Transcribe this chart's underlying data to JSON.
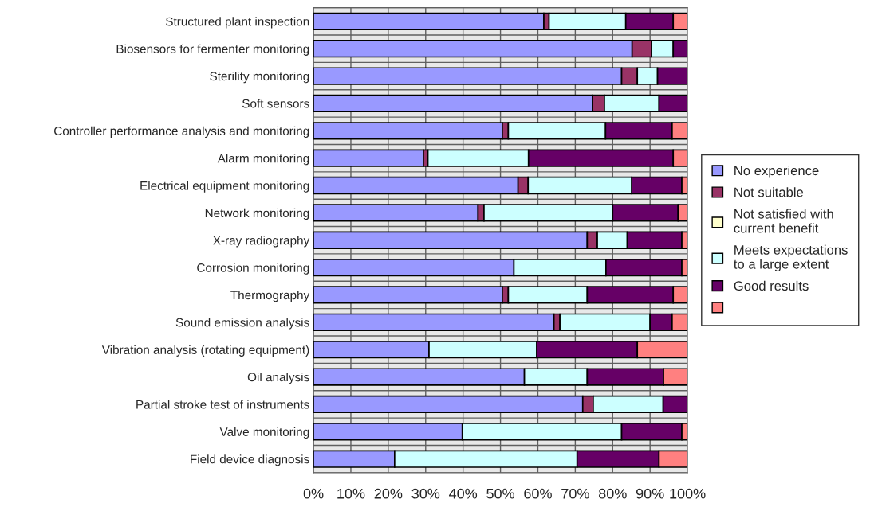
{
  "chart_data": {
    "type": "bar",
    "orientation": "horizontal",
    "stacked": true,
    "categories": [
      "Structured plant inspection",
      "Biosensors for fermenter monitoring",
      "Sterility monitoring",
      "Soft sensors",
      "Controller performance analysis and monitoring",
      "Alarm monitoring",
      "Electrical equipment monitoring",
      "Network monitoring",
      "X-ray radiography",
      "Corrosion monitoring",
      "Thermography",
      "Sound emission analysis",
      "Vibration analysis (rotating equipment)",
      "Oil analysis",
      "Partial stroke test of instruments",
      "Valve monitoring",
      "Field device diagnosis"
    ],
    "series": [
      {
        "name": "No experience",
        "color": "#9999ff",
        "values": [
          61.6,
          85.2,
          82.4,
          74.6,
          50.5,
          29.4,
          54.7,
          44.0,
          73.2,
          53.6,
          50.5,
          64.3,
          30.9,
          56.4,
          72.0,
          39.8,
          21.7
        ]
      },
      {
        "name": "Not suitable",
        "color": "#993366",
        "values": [
          1.4,
          5.2,
          4.2,
          3.2,
          1.6,
          1.2,
          2.7,
          1.6,
          2.7,
          0,
          1.6,
          1.6,
          0,
          0,
          2.8,
          0,
          0
        ]
      },
      {
        "name": "Not satisfied with\ncurrent benefit",
        "color": "#ffffcc",
        "values": [
          0,
          0,
          0,
          0,
          0,
          0,
          0,
          0,
          0,
          0,
          0,
          0,
          0,
          0,
          0,
          0,
          0
        ]
      },
      {
        "name": "Meets expectations\nto a large extent",
        "color": "#ccffff",
        "values": [
          20.5,
          5.8,
          5.4,
          14.6,
          26.0,
          26.9,
          27.7,
          34.4,
          8.0,
          24.6,
          21.1,
          24.1,
          28.8,
          16.8,
          18.7,
          42.6,
          48.8
        ]
      },
      {
        "name": "Good results",
        "color": "#660066",
        "values": [
          12.7,
          3.8,
          8.0,
          7.6,
          17.8,
          38.7,
          13.4,
          17.5,
          14.6,
          20.3,
          23.0,
          5.9,
          26.9,
          20.4,
          6.5,
          16.1,
          21.9
        ]
      },
      {
        "color": "#ff8080",
        "values": [
          3.8,
          0,
          0,
          0,
          4.1,
          3.8,
          1.5,
          2.5,
          1.5,
          1.5,
          3.8,
          4.1,
          13.4,
          6.4,
          0,
          1.5,
          7.6
        ]
      }
    ],
    "xlim": [
      0,
      100
    ],
    "xticks": [
      {
        "value": 0,
        "label": "0%"
      },
      {
        "value": 10,
        "label": "10%"
      },
      {
        "value": 20,
        "label": "20%"
      },
      {
        "value": 30,
        "label": "30%"
      },
      {
        "value": 40,
        "label": "40%"
      },
      {
        "value": 50,
        "label": "50%"
      },
      {
        "value": 60,
        "label": "60%"
      },
      {
        "value": 70,
        "label": "70%"
      },
      {
        "value": 80,
        "label": "80%"
      },
      {
        "value": 90,
        "label": "90%"
      },
      {
        "value": 100,
        "label": "100%"
      }
    ],
    "grid": true,
    "legend": "right"
  }
}
